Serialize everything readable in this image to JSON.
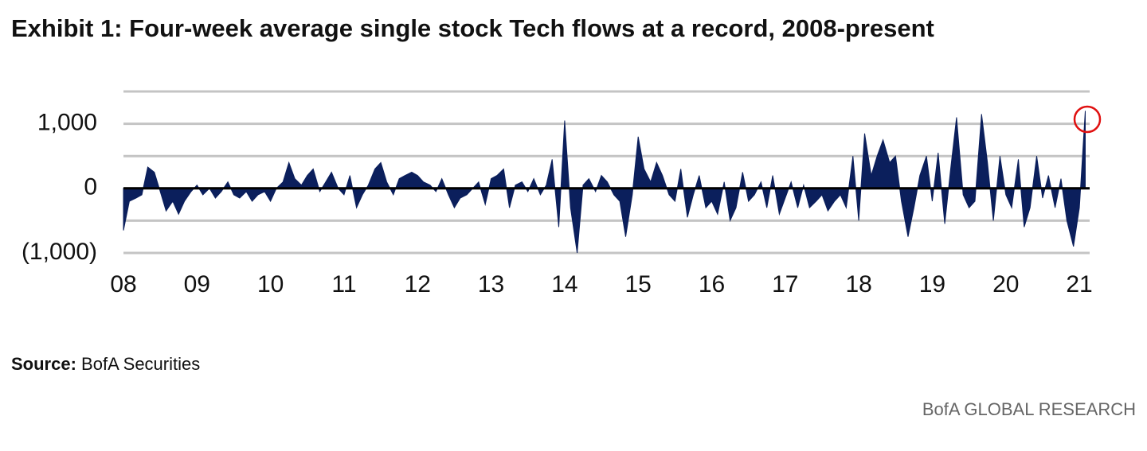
{
  "chart_data": {
    "type": "area",
    "title": "Exhibit 1: Four-week average single stock Tech flows at a record, 2008-present",
    "source_label": "Source:",
    "source": "BofA Securities",
    "brand": "BofA GLOBAL RESEARCH",
    "color": "#0b1f5c",
    "x": [
      2008.0,
      2008.08,
      2008.17,
      2008.25,
      2008.33,
      2008.42,
      2008.5,
      2008.58,
      2008.67,
      2008.75,
      2008.83,
      2008.92,
      2009.0,
      2009.08,
      2009.17,
      2009.25,
      2009.33,
      2009.42,
      2009.5,
      2009.58,
      2009.67,
      2009.75,
      2009.83,
      2009.92,
      2010.0,
      2010.08,
      2010.17,
      2010.25,
      2010.33,
      2010.42,
      2010.5,
      2010.58,
      2010.67,
      2010.75,
      2010.83,
      2010.92,
      2011.0,
      2011.08,
      2011.17,
      2011.25,
      2011.33,
      2011.42,
      2011.5,
      2011.58,
      2011.67,
      2011.75,
      2011.83,
      2011.92,
      2012.0,
      2012.08,
      2012.17,
      2012.25,
      2012.33,
      2012.42,
      2012.5,
      2012.58,
      2012.67,
      2012.75,
      2012.83,
      2012.92,
      2013.0,
      2013.08,
      2013.17,
      2013.25,
      2013.33,
      2013.42,
      2013.5,
      2013.58,
      2013.67,
      2013.75,
      2013.83,
      2013.92,
      2014.0,
      2014.08,
      2014.17,
      2014.25,
      2014.33,
      2014.42,
      2014.5,
      2014.58,
      2014.67,
      2014.75,
      2014.83,
      2014.92,
      2015.0,
      2015.08,
      2015.17,
      2015.25,
      2015.33,
      2015.42,
      2015.5,
      2015.58,
      2015.67,
      2015.75,
      2015.83,
      2015.92,
      2016.0,
      2016.08,
      2016.17,
      2016.25,
      2016.33,
      2016.42,
      2016.5,
      2016.58,
      2016.67,
      2016.75,
      2016.83,
      2016.92,
      2017.0,
      2017.08,
      2017.17,
      2017.25,
      2017.33,
      2017.42,
      2017.5,
      2017.58,
      2017.67,
      2017.75,
      2017.83,
      2017.92,
      2018.0,
      2018.08,
      2018.17,
      2018.25,
      2018.33,
      2018.42,
      2018.5,
      2018.58,
      2018.67,
      2018.75,
      2018.83,
      2018.92,
      2019.0,
      2019.08,
      2019.17,
      2019.25,
      2019.33,
      2019.42,
      2019.5,
      2019.58,
      2019.67,
      2019.75,
      2019.83,
      2019.92,
      2020.0,
      2020.08,
      2020.17,
      2020.25,
      2020.33,
      2020.42,
      2020.5,
      2020.58,
      2020.67,
      2020.75,
      2020.83,
      2020.92,
      2021.0,
      2021.08
    ],
    "values": [
      -650,
      -200,
      -150,
      -100,
      330,
      250,
      -50,
      -350,
      -200,
      -400,
      -200,
      -50,
      50,
      -100,
      0,
      -150,
      -50,
      100,
      -100,
      -150,
      -50,
      -200,
      -100,
      -50,
      -200,
      0,
      100,
      400,
      150,
      50,
      200,
      300,
      -50,
      100,
      250,
      0,
      -100,
      200,
      -300,
      -100,
      50,
      300,
      400,
      100,
      -100,
      150,
      200,
      250,
      200,
      100,
      50,
      -50,
      150,
      -100,
      -300,
      -150,
      -100,
      0,
      100,
      -250,
      150,
      200,
      300,
      -300,
      50,
      100,
      -50,
      150,
      -100,
      50,
      450,
      -600,
      1050,
      -300,
      -1000,
      50,
      150,
      -50,
      200,
      100,
      -100,
      -200,
      -750,
      -100,
      800,
      300,
      100,
      400,
      200,
      -100,
      -200,
      300,
      -450,
      -100,
      200,
      -300,
      -200,
      -400,
      100,
      -500,
      -300,
      250,
      -200,
      -100,
      100,
      -300,
      200,
      -400,
      -150,
      100,
      -300,
      50,
      -300,
      -200,
      -100,
      -350,
      -200,
      -100,
      -300,
      500,
      -500,
      850,
      200,
      500,
      750,
      400,
      500,
      -200,
      -750,
      -300,
      200,
      500,
      -200,
      550,
      -550,
      300,
      1100,
      -100,
      -300,
      -200,
      1150,
      400,
      -500,
      500,
      -100,
      -300,
      450,
      -600,
      -300,
      500,
      -150,
      200,
      -300,
      150,
      -500,
      -900,
      -300,
      1200
    ],
    "xlim": [
      2008,
      2021.14
    ],
    "xticks": [
      {
        "value": 2008,
        "label": "08"
      },
      {
        "value": 2009,
        "label": "09"
      },
      {
        "value": 2010,
        "label": "10"
      },
      {
        "value": 2011,
        "label": "11"
      },
      {
        "value": 2012,
        "label": "12"
      },
      {
        "value": 2013,
        "label": "13"
      },
      {
        "value": 2014,
        "label": "14"
      },
      {
        "value": 2015,
        "label": "15"
      },
      {
        "value": 2016,
        "label": "16"
      },
      {
        "value": 2017,
        "label": "17"
      },
      {
        "value": 2018,
        "label": "18"
      },
      {
        "value": 2019,
        "label": "19"
      },
      {
        "value": 2020,
        "label": "20"
      },
      {
        "value": 2021,
        "label": "21"
      }
    ],
    "ylim": [
      -1000,
      1500
    ],
    "yticks": [
      {
        "value": 1000,
        "label": "1,000"
      },
      0,
      {
        "value": -1000,
        "label": "(1,000)"
      }
    ],
    "grid_lines": [
      -1000,
      -500,
      0,
      500,
      1000,
      1500
    ]
  }
}
